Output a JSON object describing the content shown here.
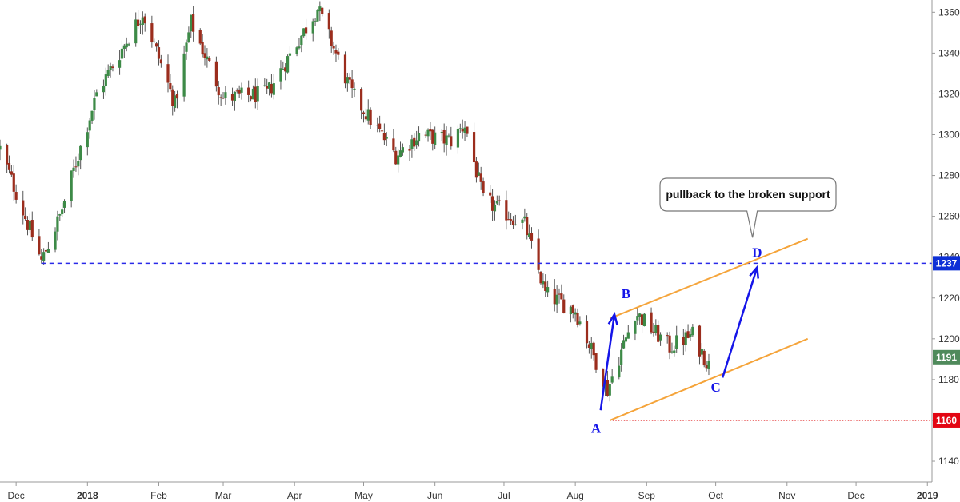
{
  "chart_data": {
    "type": "candlestick",
    "y_ticks": [
      1140,
      1160,
      1180,
      1200,
      1220,
      1240,
      1260,
      1280,
      1300,
      1320,
      1340,
      1360
    ],
    "ylim": [
      1131,
      1366
    ],
    "x_ticks": [
      {
        "label": "Dec",
        "date": "2017-12-01",
        "bold": false
      },
      {
        "label": "2018",
        "date": "2018-01-01",
        "bold": true
      },
      {
        "label": "Feb",
        "date": "2018-02-01",
        "bold": false
      },
      {
        "label": "Mar",
        "date": "2018-03-01",
        "bold": false
      },
      {
        "label": "Apr",
        "date": "2018-04-01",
        "bold": false
      },
      {
        "label": "May",
        "date": "2018-05-01",
        "bold": false
      },
      {
        "label": "Jun",
        "date": "2018-06-01",
        "bold": false
      },
      {
        "label": "Jul",
        "date": "2018-07-01",
        "bold": false
      },
      {
        "label": "Aug",
        "date": "2018-08-01",
        "bold": false
      },
      {
        "label": "Sep",
        "date": "2018-09-01",
        "bold": false
      },
      {
        "label": "Oct",
        "date": "2018-10-01",
        "bold": false
      },
      {
        "label": "Nov",
        "date": "2018-11-01",
        "bold": false
      },
      {
        "label": "Dec",
        "date": "2018-12-01",
        "bold": false
      },
      {
        "label": "2019",
        "date": "2019-01-01",
        "bold": true
      }
    ],
    "xlim": [
      "2017-11-24",
      "2019-01-03"
    ],
    "anchors": [
      {
        "date": "2017-11-24",
        "close": 1293
      },
      {
        "date": "2017-12-12",
        "close": 1238
      },
      {
        "date": "2017-12-20",
        "close": 1260
      },
      {
        "date": "2018-01-05",
        "close": 1320
      },
      {
        "date": "2018-01-25",
        "close": 1360
      },
      {
        "date": "2018-02-08",
        "close": 1315
      },
      {
        "date": "2018-02-15",
        "close": 1355
      },
      {
        "date": "2018-03-01",
        "close": 1318
      },
      {
        "date": "2018-03-20",
        "close": 1320
      },
      {
        "date": "2018-04-11",
        "close": 1362
      },
      {
        "date": "2018-04-26",
        "close": 1320
      },
      {
        "date": "2018-05-15",
        "close": 1290
      },
      {
        "date": "2018-05-25",
        "close": 1300
      },
      {
        "date": "2018-06-08",
        "close": 1297
      },
      {
        "date": "2018-06-14",
        "close": 1305
      },
      {
        "date": "2018-06-22",
        "close": 1268
      },
      {
        "date": "2018-07-10",
        "close": 1256
      },
      {
        "date": "2018-07-19",
        "close": 1222
      },
      {
        "date": "2018-08-01",
        "close": 1214
      },
      {
        "date": "2018-08-15",
        "close": 1175
      },
      {
        "date": "2018-08-21",
        "close": 1194
      },
      {
        "date": "2018-08-27",
        "close": 1213
      },
      {
        "date": "2018-09-11",
        "close": 1196
      },
      {
        "date": "2018-09-21",
        "close": 1202
      },
      {
        "date": "2018-09-28",
        "close": 1187
      }
    ],
    "price_levels": [
      {
        "value": 1237,
        "label": "1237",
        "style": "dashed",
        "color": "#2a2ae8",
        "from": "2017-12-12",
        "badge": "#0d2fd6"
      },
      {
        "value": 1160,
        "label": "1160",
        "style": "dotted",
        "color": "#e02020",
        "from": "2018-08-16",
        "badge": "#e30613"
      }
    ],
    "last_price": {
      "value": 1191,
      "label": "1191",
      "badge": "#4f8a5b"
    },
    "channel_lines": [
      {
        "from": {
          "date": "2018-08-16",
          "value": 1160
        },
        "to": {
          "date": "2018-11-10",
          "value": 1200
        },
        "color": "#f5a43a"
      },
      {
        "from": {
          "date": "2018-08-16",
          "value": 1210
        },
        "to": {
          "date": "2018-11-10",
          "value": 1249
        },
        "color": "#f5a43a"
      }
    ],
    "wave_arrows": [
      {
        "from": {
          "date": "2018-08-12",
          "value": 1165
        },
        "to": {
          "date": "2018-08-18",
          "value": 1212
        }
      },
      {
        "from": {
          "date": "2018-10-04",
          "value": 1181
        },
        "to": {
          "date": "2018-10-19",
          "value": 1235
        }
      }
    ],
    "wave_labels": [
      {
        "text": "A",
        "date": "2018-08-10",
        "value": 1154
      },
      {
        "text": "B",
        "date": "2018-08-23",
        "value": 1220
      },
      {
        "text": "C",
        "date": "2018-10-01",
        "value": 1174
      },
      {
        "text": "D",
        "date": "2018-10-19",
        "value": 1240
      }
    ],
    "annotation": {
      "text": "pullback to the broken support",
      "pointer": {
        "date": "2018-10-17",
        "value": 1248
      }
    },
    "colors": {
      "up": "#3d8a47",
      "down": "#9b2d1d",
      "wick": "#555555"
    }
  }
}
